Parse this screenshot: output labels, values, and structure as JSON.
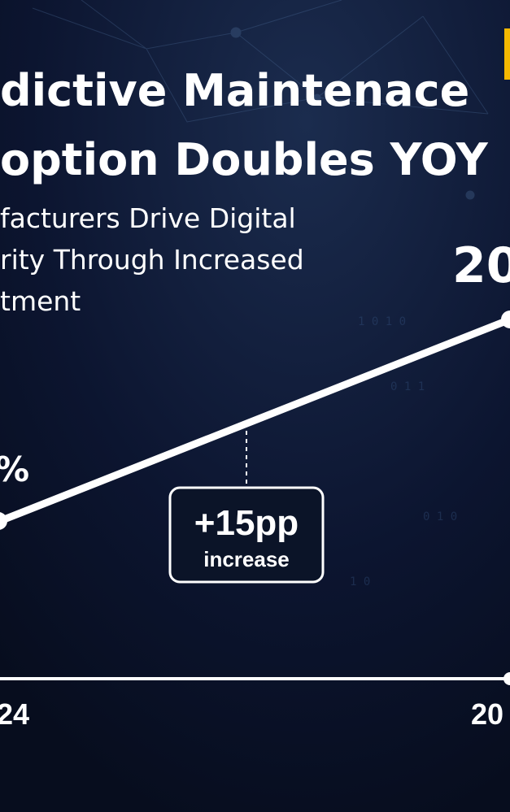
{
  "title": [
    "dictive Maintenace",
    "option Doubles YOY"
  ],
  "subtitle": [
    "facturers Drive Digital",
    "rity Through Increased",
    "tment"
  ],
  "left_label": "%",
  "right_label": "20",
  "callout": {
    "value": "+15pp",
    "text": "increase"
  },
  "x_labels": [
    "24",
    "20"
  ]
}
